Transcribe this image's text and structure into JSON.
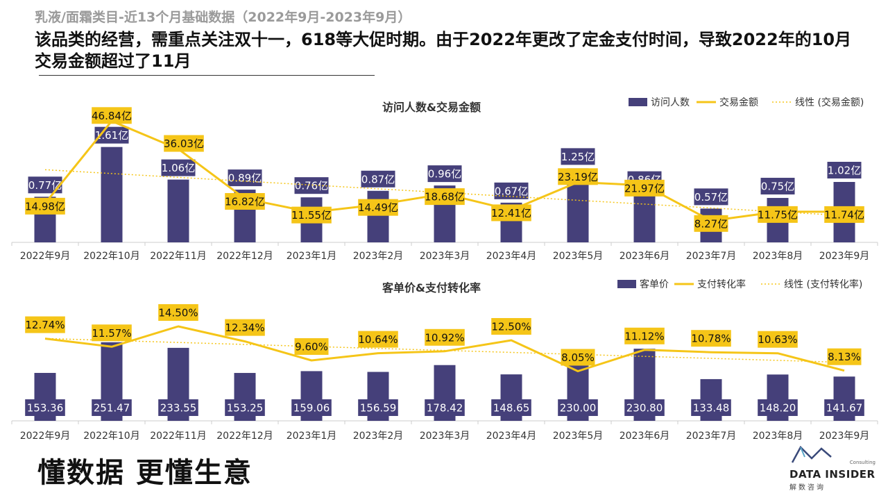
{
  "page": {
    "subtitle": "乳液/面霜类目-近13个月基础数据（2022年9月-2023年9月）",
    "headline": "该品类的经营，需重点关注双十一，618等大促时期。由于2022年更改了定金支付时间，导致2022年的10月交易金额超过了11月",
    "slogan": "懂数据 更懂生意",
    "logo": {
      "consulting": "Consulting",
      "brand": "DATA INSIDER",
      "cn": "解数咨询"
    }
  },
  "colors": {
    "bar": "#45407a",
    "line": "#f5c518",
    "label_bg": "#f5c518",
    "axis": "#cccccc"
  },
  "chart_data": [
    {
      "type": "bar+line",
      "title": "访问人数&交易金额",
      "categories": [
        "2022年9月",
        "2022年10月",
        "2022年11月",
        "2022年12月",
        "2023年1月",
        "2023年2月",
        "2023年3月",
        "2023年4月",
        "2023年5月",
        "2023年6月",
        "2023年7月",
        "2023年8月",
        "2023年9月"
      ],
      "series": [
        {
          "name": "访问人数",
          "kind": "bar",
          "values": [
            0.77,
            1.61,
            1.06,
            0.89,
            0.76,
            0.87,
            0.96,
            0.67,
            1.25,
            0.86,
            0.57,
            0.75,
            1.02
          ],
          "labels": [
            "0.77亿",
            "1.61亿",
            "1.06亿",
            "0.89亿",
            "0.76亿",
            "0.87亿",
            "0.96亿",
            "0.67亿",
            "1.25亿",
            "0.86亿",
            "0.57亿",
            "0.75亿",
            "1.02亿"
          ]
        },
        {
          "name": "交易金额",
          "kind": "line",
          "values": [
            14.98,
            46.84,
            36.03,
            16.82,
            11.55,
            14.49,
            18.68,
            12.41,
            23.19,
            21.97,
            8.27,
            11.75,
            11.74
          ],
          "labels": [
            "14.98亿",
            "46.84亿",
            "36.03亿",
            "16.82亿",
            "11.55亿",
            "14.49亿",
            "18.68亿",
            "12.41亿",
            "23.19亿",
            "21.97亿",
            "8.27亿",
            "11.75亿",
            "11.74亿"
          ]
        },
        {
          "name": "线性 (交易金额)",
          "kind": "trendline"
        }
      ],
      "legend": "top-right"
    },
    {
      "type": "bar+line",
      "title": "客单价&支付转化率",
      "categories": [
        "2022年9月",
        "2022年10月",
        "2022年11月",
        "2022年12月",
        "2023年1月",
        "2023年2月",
        "2023年3月",
        "2023年4月",
        "2023年5月",
        "2023年6月",
        "2023年7月",
        "2023年8月",
        "2023年9月"
      ],
      "series": [
        {
          "name": "客单价",
          "kind": "bar",
          "values": [
            153.36,
            251.47,
            233.55,
            153.25,
            159.06,
            156.59,
            178.42,
            148.65,
            230.0,
            230.8,
            133.48,
            148.2,
            141.67
          ],
          "labels": [
            "153.36",
            "251.47",
            "233.55",
            "153.25",
            "159.06",
            "156.59",
            "178.42",
            "148.65",
            "230.00",
            "230.80",
            "133.48",
            "148.20",
            "141.67"
          ]
        },
        {
          "name": "支付转化率",
          "kind": "line",
          "values": [
            12.74,
            11.57,
            14.5,
            12.34,
            9.6,
            10.64,
            10.92,
            12.5,
            8.05,
            11.12,
            10.78,
            10.63,
            8.13
          ],
          "labels": [
            "12.74%",
            "11.57%",
            "14.50%",
            "12.34%",
            "9.60%",
            "10.64%",
            "10.92%",
            "12.50%",
            "8.05%",
            "11.12%",
            "10.78%",
            "10.63%",
            "8.13%"
          ]
        },
        {
          "name": "线性 (支付转化率)",
          "kind": "trendline"
        }
      ],
      "legend": "top-right"
    }
  ]
}
